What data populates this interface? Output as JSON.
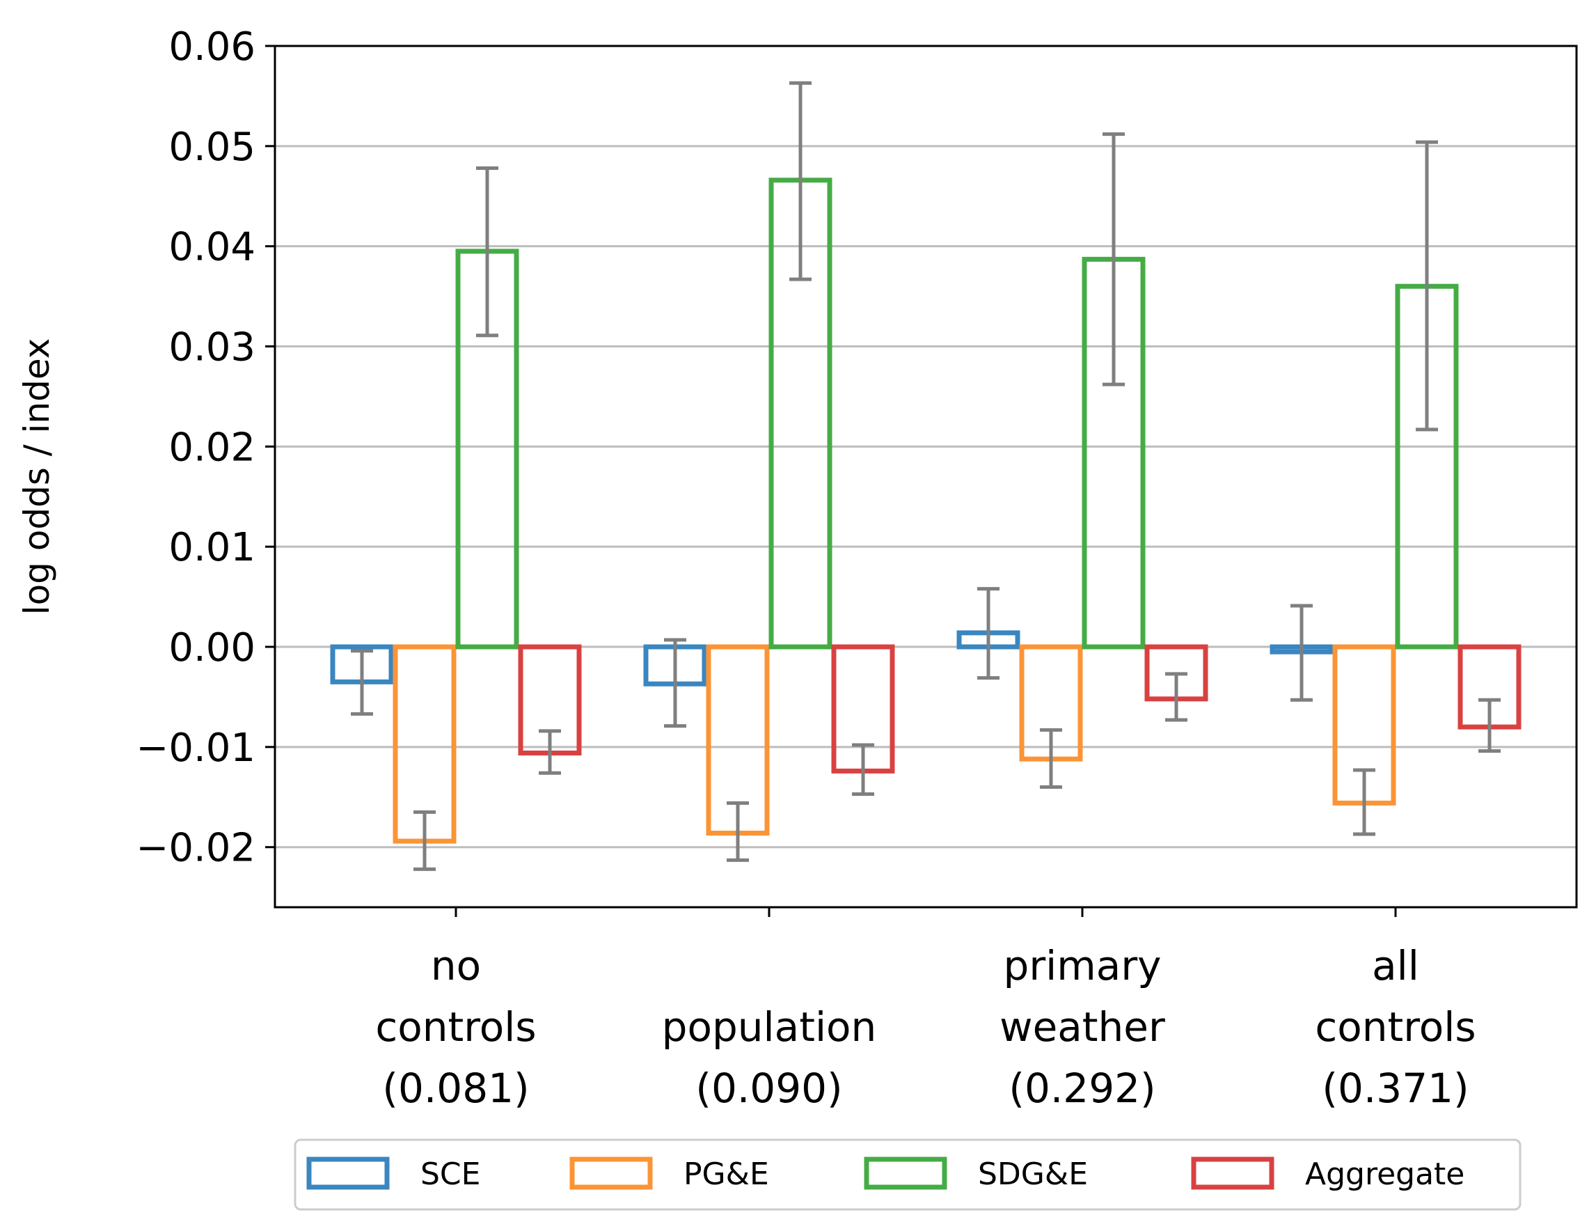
{
  "chart_data": {
    "type": "bar",
    "title": "",
    "xlabel": "",
    "ylabel": "log odds / index",
    "ylim": [
      -0.026,
      0.06
    ],
    "yticks": [
      -0.02,
      -0.01,
      0.0,
      0.01,
      0.02,
      0.03,
      0.04,
      0.05,
      0.06
    ],
    "ytick_labels": [
      "−0.02",
      "−0.01",
      "0.00",
      "0.01",
      "0.02",
      "0.03",
      "0.04",
      "0.05",
      "0.06"
    ],
    "grid": "horizontal",
    "bar_style": "outline",
    "categories": [
      [
        "no",
        "controls",
        "(0.081)"
      ],
      [
        "population",
        "(0.090)"
      ],
      [
        "primary",
        "weather",
        "(0.292)"
      ],
      [
        "all",
        "controls",
        "(0.371)"
      ]
    ],
    "series": [
      {
        "name": "SCE",
        "color": "#3a86c0",
        "values": [
          -0.0035,
          -0.0037,
          0.0014,
          -0.0005
        ],
        "err_low": [
          -0.0067,
          -0.0079,
          -0.0031,
          -0.0053
        ],
        "err_high": [
          -0.0004,
          0.0007,
          0.0058,
          0.0041
        ]
      },
      {
        "name": "PG&E",
        "color": "#fb9436",
        "values": [
          -0.0194,
          -0.0186,
          -0.0112,
          -0.0156
        ],
        "err_low": [
          -0.0222,
          -0.0213,
          -0.014,
          -0.0187
        ],
        "err_high": [
          -0.0165,
          -0.0156,
          -0.0083,
          -0.0123
        ]
      },
      {
        "name": "SDG&E",
        "color": "#45ac45",
        "values": [
          0.0395,
          0.0466,
          0.0387,
          0.036
        ],
        "err_low": [
          0.0311,
          0.0367,
          0.0262,
          0.0217
        ],
        "err_high": [
          0.0478,
          0.0563,
          0.0512,
          0.0504
        ]
      },
      {
        "name": "Aggregate",
        "color": "#d94141",
        "values": [
          -0.0106,
          -0.0124,
          -0.0052,
          -0.008
        ],
        "err_low": [
          -0.0126,
          -0.0147,
          -0.0073,
          -0.0104
        ],
        "err_high": [
          -0.0084,
          -0.0098,
          -0.0027,
          -0.0053
        ]
      }
    ],
    "errorbar_color": "#7f7f7f",
    "legend": {
      "position": "bottom",
      "entries": [
        "SCE",
        "PG&E",
        "SDG&E",
        "Aggregate"
      ]
    }
  }
}
